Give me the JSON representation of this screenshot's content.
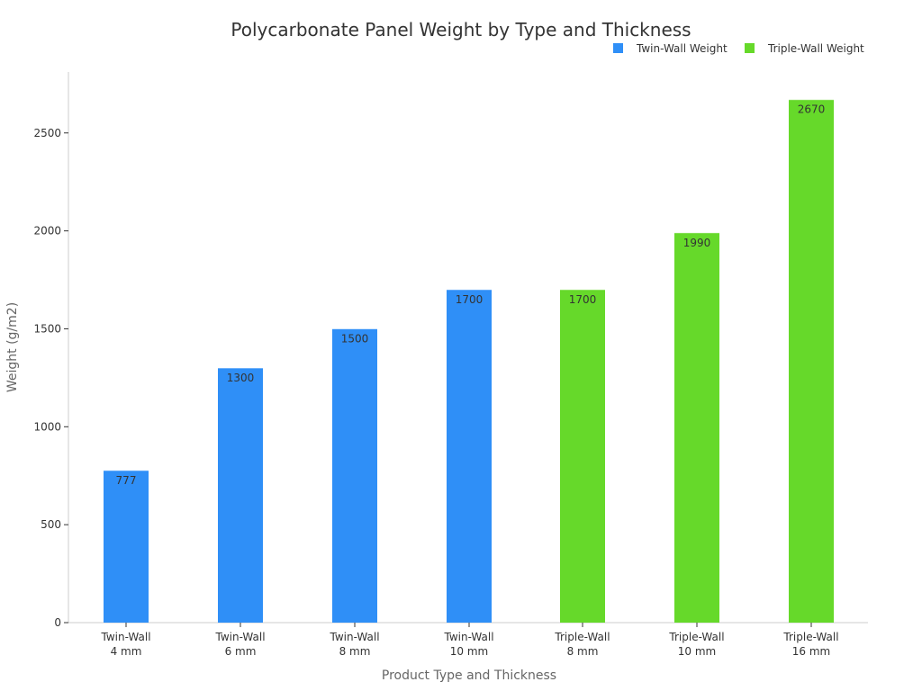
{
  "chart_data": {
    "type": "bar",
    "title": "Polycarbonate Panel Weight by Type and Thickness",
    "xlabel": "Product Type and Thickness",
    "ylabel": "Weight (g/m2)",
    "ylim": [
      0,
      2800
    ],
    "yticks": [
      "0",
      "500",
      "1000",
      "1500",
      "2000",
      "2500"
    ],
    "legend_position": "top-right",
    "categories": [
      [
        "Twin-Wall",
        "4 mm"
      ],
      [
        "Twin-Wall",
        "6 mm"
      ],
      [
        "Twin-Wall",
        "8 mm"
      ],
      [
        "Twin-Wall",
        "10 mm"
      ],
      [
        "Triple-Wall",
        "8 mm"
      ],
      [
        "Triple-Wall",
        "10 mm"
      ],
      [
        "Triple-Wall",
        "16 mm"
      ]
    ],
    "series": [
      {
        "name": "Twin-Wall Weight",
        "color": "#2f8ff7",
        "values": [
          777,
          1300,
          1500,
          1700,
          null,
          null,
          null
        ]
      },
      {
        "name": "Triple-Wall Weight",
        "color": "#66d92a",
        "values": [
          null,
          null,
          null,
          null,
          1700,
          1990,
          2670
        ]
      }
    ]
  }
}
